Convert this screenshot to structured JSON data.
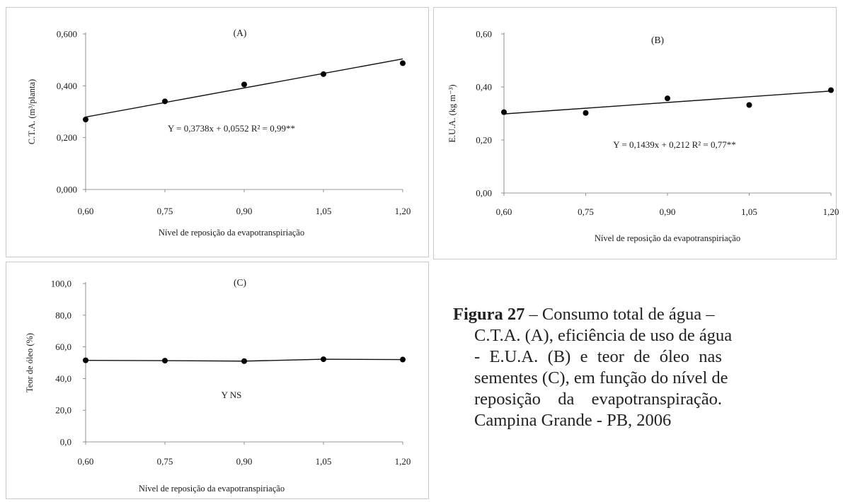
{
  "chart_data": [
    {
      "type": "scatter",
      "panel_tag": "(A)",
      "x": [
        0.6,
        0.75,
        0.9,
        1.05,
        1.2
      ],
      "y": [
        0.27,
        0.34,
        0.405,
        0.445,
        0.487
      ],
      "x_ticks": [
        "0,60",
        "0,75",
        "0,90",
        "1,05",
        "1,20"
      ],
      "y_ticks": [
        "0,000",
        "0,200",
        "0,400",
        "0,600"
      ],
      "y_tick_values": [
        0,
        0.2,
        0.4,
        0.6
      ],
      "xlim": [
        0.6,
        1.2
      ],
      "ylim": [
        0,
        0.6
      ],
      "xlabel": "Nível de reposição da evapotranspiriação",
      "ylabel": "C.T.A. (m³/planta)",
      "equation": "Y = 0,3738x + 0,0552   R² = 0,99**",
      "trendline": {
        "slope": 0.3738,
        "intercept": 0.0552
      },
      "grid": false
    },
    {
      "type": "scatter",
      "panel_tag": "(B)",
      "x": [
        0.6,
        0.75,
        0.9,
        1.05,
        1.2
      ],
      "y": [
        0.305,
        0.302,
        0.357,
        0.332,
        0.388
      ],
      "x_ticks": [
        "0,60",
        "0,75",
        "0,90",
        "1,05",
        "1,20"
      ],
      "y_ticks": [
        "0,00",
        "0,20",
        "0,40",
        "0,60"
      ],
      "y_tick_values": [
        0,
        0.2,
        0.4,
        0.6
      ],
      "xlim": [
        0.6,
        1.2
      ],
      "ylim": [
        0,
        0.6
      ],
      "xlabel": "Nível de reposição da evapotranspiriação",
      "ylabel": "E.U.A. (kg m⁻³)",
      "equation": "Y = 0,1439x + 0,212   R² = 0,77**",
      "trendline": {
        "slope": 0.1439,
        "intercept": 0.212
      },
      "grid": false
    },
    {
      "type": "line",
      "panel_tag": "(C)",
      "x": [
        0.6,
        0.75,
        0.9,
        1.05,
        1.2
      ],
      "y": [
        51.5,
        51.3,
        51.0,
        52.2,
        52.0
      ],
      "x_ticks": [
        "0,60",
        "0,75",
        "0,90",
        "1,05",
        "1,20"
      ],
      "y_ticks": [
        "0,0",
        "20,0",
        "40,0",
        "60,0",
        "80,0",
        "100,0"
      ],
      "y_tick_values": [
        0,
        20,
        40,
        60,
        80,
        100
      ],
      "xlim": [
        0.6,
        1.2
      ],
      "ylim": [
        0,
        100
      ],
      "xlabel": "Nível de reposição da evapotranspiriação",
      "ylabel": "Teor de óleo (%)",
      "equation": "Y   NS",
      "grid": false
    }
  ],
  "caption": {
    "figure_label": "Figura 27",
    "line1": " – Consumo total de água –",
    "line2": "C.T.A. (A), eficiência de uso de água",
    "line3_words": [
      "-",
      "E.U.A.",
      "(B)",
      "e",
      "teor",
      "de",
      "óleo",
      "nas"
    ],
    "line4": "sementes (C), em função do nível de",
    "line5_words": [
      "reposição",
      "da",
      "evapotranspiração."
    ],
    "line6": "Campina Grande - PB, 2006"
  }
}
